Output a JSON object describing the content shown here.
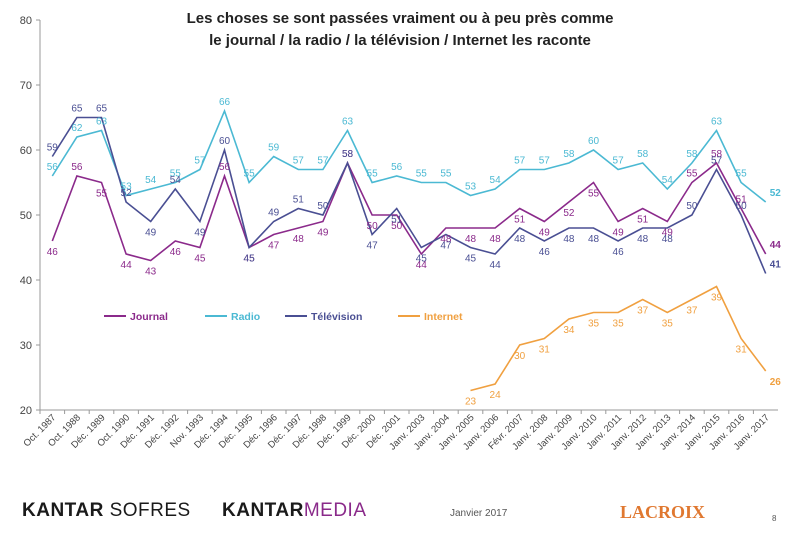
{
  "chart_data": {
    "type": "line",
    "title_line1": "Les choses se sont passées vraiment ou à peu près comme",
    "title_line2": "le journal / la radio / la télévision / Internet les raconte",
    "categories": [
      "Oct. 1987",
      "Oct. 1988",
      "Déc. 1989",
      "Oct. 1990",
      "Déc. 1991",
      "Déc. 1992",
      "Nov. 1993",
      "Déc. 1994",
      "Déc. 1995",
      "Déc. 1996",
      "Déc. 1997",
      "Déc. 1998",
      "Déc. 1999",
      "Déc. 2000",
      "Déc. 2001",
      "Janv. 2003",
      "Janv. 2004",
      "Janv. 2005",
      "Janv. 2006",
      "Févr. 2007",
      "Janv. 2008",
      "Janv. 2009",
      "Janv. 2010",
      "Janv. 2011",
      "Janv. 2012",
      "Janv. 2013",
      "Janv. 2014",
      "Janv. 2015",
      "Janv. 2016",
      "Janv. 2017"
    ],
    "ylim": [
      20,
      80
    ],
    "yticks": [
      "20",
      "30",
      "40",
      "50",
      "60",
      "70",
      "80"
    ],
    "series": [
      {
        "name": "Journal",
        "color": "#8b2a8b",
        "values": [
          46,
          56,
          55,
          44,
          43,
          46,
          45,
          56,
          45,
          47,
          48,
          49,
          58,
          50,
          50,
          44,
          48,
          48,
          48,
          51,
          49,
          52,
          55,
          49,
          51,
          49,
          55,
          58,
          51,
          44
        ]
      },
      {
        "name": "Radio",
        "color": "#4bb9d3",
        "values": [
          56,
          62,
          63,
          53,
          54,
          55,
          57,
          66,
          55,
          59,
          57,
          57,
          63,
          55,
          56,
          55,
          55,
          53,
          54,
          57,
          57,
          58,
          60,
          57,
          58,
          54,
          58,
          63,
          55,
          52
        ]
      },
      {
        "name": "Télévision",
        "color": "#4a4f93",
        "values": [
          59,
          65,
          65,
          52,
          49,
          54,
          49,
          60,
          45,
          49,
          51,
          50,
          58,
          47,
          51,
          45,
          47,
          45,
          44,
          48,
          46,
          48,
          48,
          46,
          48,
          48,
          50,
          57,
          50,
          41
        ]
      },
      {
        "name": "Internet",
        "color": "#f0a040",
        "values": [
          null,
          null,
          null,
          null,
          null,
          null,
          null,
          null,
          null,
          null,
          null,
          null,
          null,
          null,
          null,
          null,
          null,
          23,
          24,
          30,
          31,
          34,
          35,
          35,
          37,
          35,
          37,
          39,
          31,
          26
        ]
      }
    ],
    "legend_placement": "center-left"
  },
  "footer": {
    "kantar1_bold": "KANTAR",
    "kantar1_rest": "SOFRES",
    "kantar2_bold": "KANTAR",
    "kantar2_rest": "MEDIA",
    "date": "Janvier 2017",
    "lacroix": "LACROIX",
    "page": "8"
  }
}
